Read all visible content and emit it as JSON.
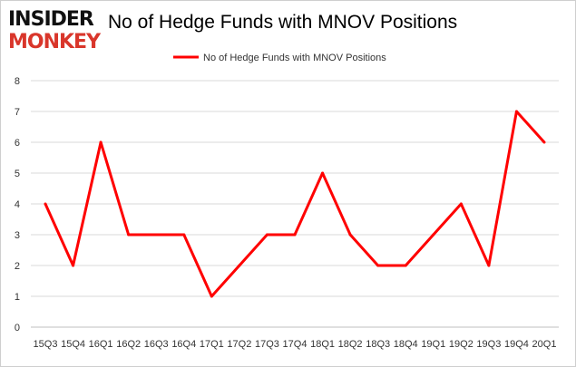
{
  "logo": {
    "line1": "INSIDER",
    "line2": "MONKEY"
  },
  "chart_data": {
    "type": "line",
    "title": "No of Hedge Funds with MNOV Positions",
    "categories": [
      "15Q3",
      "15Q4",
      "16Q1",
      "16Q2",
      "16Q3",
      "16Q4",
      "17Q1",
      "17Q2",
      "17Q3",
      "17Q4",
      "18Q1",
      "18Q2",
      "18Q3",
      "18Q4",
      "19Q1",
      "19Q2",
      "19Q3",
      "19Q4",
      "20Q1"
    ],
    "series": [
      {
        "name": "No of Hedge Funds with MNOV Positions",
        "values": [
          4,
          2,
          6,
          3,
          3,
          3,
          1,
          2,
          3,
          3,
          5,
          3,
          2,
          2,
          3,
          4,
          2,
          7,
          6
        ],
        "color": "#ff0000"
      }
    ],
    "ylim": [
      0,
      8
    ],
    "yticks": [
      0,
      1,
      2,
      3,
      4,
      5,
      6,
      7,
      8
    ],
    "grid": true,
    "legend": "top-center",
    "xlabel": "",
    "ylabel": ""
  }
}
